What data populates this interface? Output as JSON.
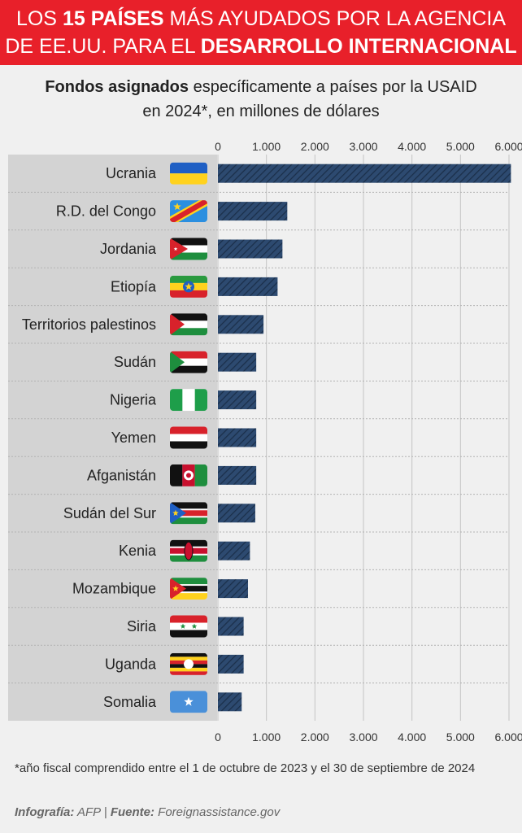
{
  "header": {
    "line1_a": "LOS ",
    "line1_b": "15 PAÍSES",
    "line1_c": " MÁS AYUDADOS POR LA AGENCIA",
    "line2_a": "DE EE.UU. PARA EL ",
    "line2_b": "DESARROLLO INTERNACIONAL"
  },
  "subtitle": {
    "bold": "Fondos asignados",
    "line1_rest": " específicamente a países por la USAID",
    "line2": "en 2024*, en millones de dólares"
  },
  "footnote": "*año fiscal comprendido entre el 1 de octubre de 2023 y el 30 de septiembre de 2024",
  "credits": {
    "infografia_label": "Infografía:",
    "infografia_value": " AFP | ",
    "fuente_label": "Fuente:",
    "fuente_value": " Foreignassistance.gov"
  },
  "colors": {
    "header_bg": "#e8202a",
    "bar": "#2d4a70",
    "panel": "#d3d3d3"
  },
  "chart_data": {
    "type": "bar",
    "orientation": "horizontal",
    "categories": [
      "Ucrania",
      "R.D. del Congo",
      "Jordania",
      "Etiopía",
      "Territorios palestinos",
      "Sudán",
      "Nigeria",
      "Yemen",
      "Afganistán",
      "Sudán del Sur",
      "Kenia",
      "Mozambique",
      "Siria",
      "Uganda",
      "Somalia"
    ],
    "values": [
      6040,
      1430,
      1330,
      1230,
      940,
      790,
      790,
      790,
      790,
      770,
      660,
      620,
      530,
      530,
      490
    ],
    "xlim": [
      0,
      6000
    ],
    "xticks": [
      "0",
      "1.000",
      "2.000",
      "3.000",
      "4.000",
      "5.000",
      "6.000"
    ],
    "xtick_values": [
      0,
      1000,
      2000,
      3000,
      4000,
      5000,
      6000
    ],
    "flags": [
      "ukraine-flag-icon",
      "drc-flag-icon",
      "jordan-flag-icon",
      "ethiopia-flag-icon",
      "palestine-flag-icon",
      "sudan-flag-icon",
      "nigeria-flag-icon",
      "yemen-flag-icon",
      "afghanistan-flag-icon",
      "south-sudan-flag-icon",
      "kenya-flag-icon",
      "mozambique-flag-icon",
      "syria-flag-icon",
      "uganda-flag-icon",
      "somalia-flag-icon"
    ],
    "grid": true
  }
}
